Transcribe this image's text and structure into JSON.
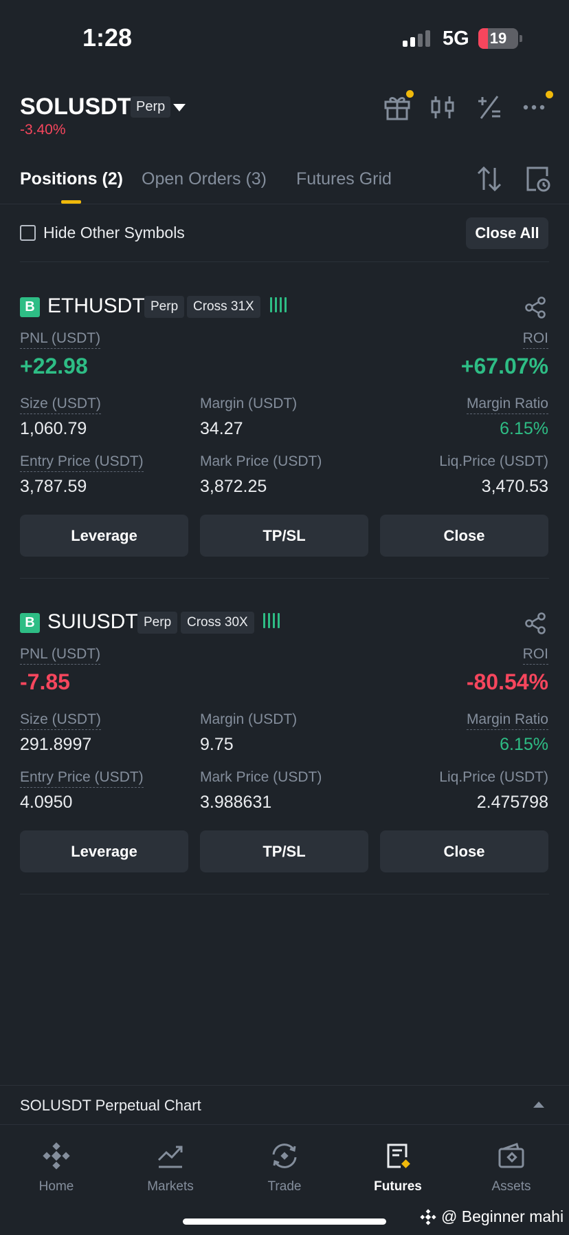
{
  "status_bar": {
    "time": "1:28",
    "network": "5G",
    "battery": "19"
  },
  "header": {
    "symbol": "SOLUSDT",
    "contract_tag": "Perp",
    "change": "-3.40%",
    "icons": [
      "gift-icon",
      "candlestick-icon",
      "calculator-icon",
      "more-icon"
    ]
  },
  "tabs": [
    {
      "label": "Positions (2)",
      "active": true
    },
    {
      "label": "Open Orders (3)",
      "active": false
    },
    {
      "label": "Futures Grid",
      "active": false
    }
  ],
  "filter": {
    "hide_label": "Hide Other Symbols",
    "hide_checked": false,
    "close_all": "Close All"
  },
  "positions": [
    {
      "side_badge": "B",
      "symbol": "ETHUSDT",
      "type_tag": "Perp",
      "margin_tag": "Cross 31X",
      "risk_bars": "!!!!",
      "pnl_label": "PNL (USDT)",
      "pnl": "+22.98",
      "roi_label": "ROI",
      "roi": "+67.07%",
      "size_label": "Size (USDT)",
      "size": "1,060.79",
      "margin_label": "Margin (USDT)",
      "margin": "34.27",
      "margin_ratio_label": "Margin Ratio",
      "margin_ratio": "6.15%",
      "entry_label": "Entry Price (USDT)",
      "entry": "3,787.59",
      "mark_label": "Mark Price (USDT)",
      "mark": "3,872.25",
      "liq_label": "Liq.Price (USDT)",
      "liq": "3,470.53",
      "buttons": [
        "Leverage",
        "TP/SL",
        "Close"
      ]
    },
    {
      "side_badge": "B",
      "symbol": "SUIUSDT",
      "type_tag": "Perp",
      "margin_tag": "Cross 30X",
      "risk_bars": "!!!!",
      "pnl_label": "PNL (USDT)",
      "pnl": "-7.85",
      "roi_label": "ROI",
      "roi": "-80.54%",
      "size_label": "Size (USDT)",
      "size": "291.8997",
      "margin_label": "Margin (USDT)",
      "margin": "9.75",
      "margin_ratio_label": "Margin Ratio",
      "margin_ratio": "6.15%",
      "entry_label": "Entry Price (USDT)",
      "entry": "4.0950",
      "mark_label": "Mark Price (USDT)",
      "mark": "3.988631",
      "liq_label": "Liq.Price (USDT)",
      "liq": "2.475798",
      "buttons": [
        "Leverage",
        "TP/SL",
        "Close"
      ]
    }
  ],
  "chart_strip": {
    "label": "SOLUSDT Perpetual  Chart"
  },
  "nav": [
    {
      "label": "Home",
      "icon": "home-icon",
      "active": false
    },
    {
      "label": "Markets",
      "icon": "markets-icon",
      "active": false
    },
    {
      "label": "Trade",
      "icon": "trade-icon",
      "active": false
    },
    {
      "label": "Futures",
      "icon": "futures-icon",
      "active": true
    },
    {
      "label": "Assets",
      "icon": "assets-icon",
      "active": false
    }
  ],
  "watermark": "@ Beginner mahi",
  "colors": {
    "background": "#1e2329",
    "positive": "#2ebd85",
    "negative": "#f6465d",
    "accent": "#f0b90b",
    "muted": "#848e9c"
  }
}
